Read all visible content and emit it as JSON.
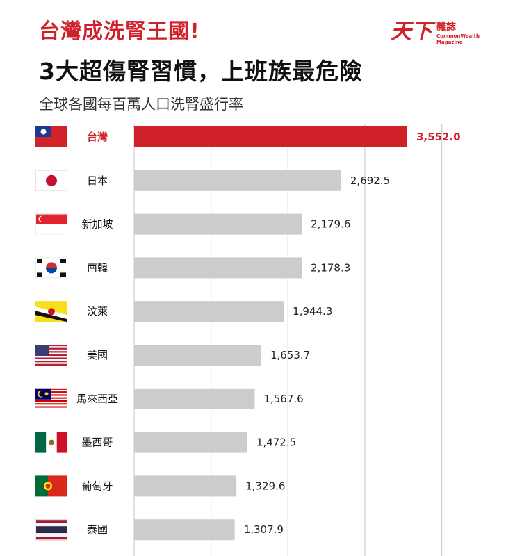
{
  "header": {
    "headline": "台灣成洗腎王國!",
    "subtitle": "3大超傷腎習慣，上班族最危險",
    "caption": "全球各國每百萬人口洗腎盛行率"
  },
  "brand": {
    "mark": "天下",
    "name_cn": "雜誌",
    "name_en_1": "CommonWealth",
    "name_en_2": "Magazine"
  },
  "colors": {
    "highlight": "#d0202a",
    "bar": "#cccccc",
    "grid": "#cfcfcf"
  },
  "chart_data": {
    "type": "bar",
    "orientation": "horizontal",
    "title": "全球各國每百萬人口洗腎盛行率",
    "categories": [
      "台灣",
      "日本",
      "新加坡",
      "南韓",
      "汶萊",
      "美國",
      "馬來西亞",
      "墨西哥",
      "葡萄牙",
      "泰國"
    ],
    "values": [
      3552.0,
      2692.5,
      2179.6,
      2178.3,
      1944.3,
      1653.7,
      1567.6,
      1472.5,
      1329.6,
      1307.9
    ],
    "value_labels": [
      "3,552.0",
      "2,692.5",
      "2,179.6",
      "2,178.3",
      "1,944.3",
      "1,653.7",
      "1,567.6",
      "1,472.5",
      "1,329.6",
      "1,307.9"
    ],
    "flags": [
      "taiwan-flag",
      "japan-flag",
      "singapore-flag",
      "south-korea-flag",
      "brunei-flag",
      "usa-flag",
      "malaysia-flag",
      "mexico-flag",
      "portugal-flag",
      "thailand-flag"
    ],
    "highlight_index": 0,
    "grid": true,
    "xlim": [
      0,
      4000
    ]
  }
}
